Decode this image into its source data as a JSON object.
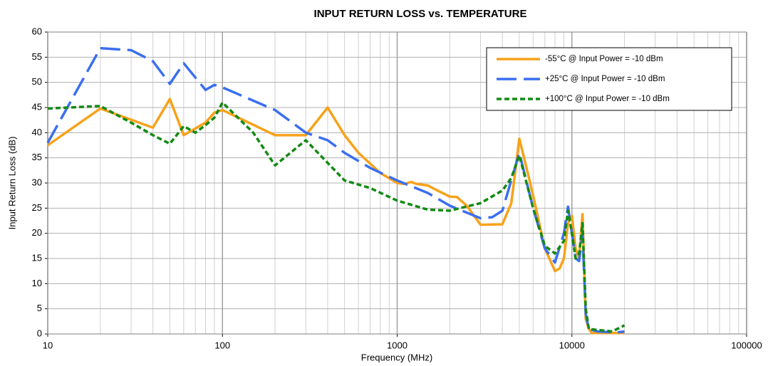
{
  "chart_data": {
    "type": "line",
    "title": "INPUT RETURN LOSS  vs. TEMPERATURE",
    "x_label": "Frequency (MHz)",
    "y_label": "Input Return Loss (dB)",
    "x_scale": "log",
    "xlim": [
      10,
      100000
    ],
    "xticks": [
      10,
      100,
      1000,
      10000,
      100000
    ],
    "ylim": [
      0,
      60
    ],
    "yticks": [
      0,
      5,
      10,
      15,
      20,
      25,
      30,
      35,
      40,
      45,
      50,
      55,
      60
    ],
    "grid": true,
    "minor_grid": true,
    "legend": "upper right",
    "series": [
      {
        "name": "-55°C @ Input Power = -10 dBm",
        "color": "#f7a21b",
        "line_style": "solid",
        "x": [
          10,
          20,
          40,
          50,
          60,
          80,
          90,
          100,
          200,
          300,
          400,
          500,
          600,
          800,
          1000,
          1100,
          1200,
          1300,
          1500,
          1700,
          2000,
          2200,
          2500,
          3000,
          4000,
          4500,
          5000,
          5500,
          6000,
          7000,
          8000,
          8500,
          9000,
          9500,
          10000,
          10500,
          11000,
          11500,
          12000,
          12500,
          13000,
          15000,
          20000
        ],
        "values": [
          37.5,
          44.8,
          41,
          46.7,
          39.5,
          42,
          44,
          44.5,
          39.5,
          39.5,
          45,
          39.5,
          36,
          32,
          30,
          29.8,
          30.2,
          29.8,
          29.5,
          28.5,
          27.3,
          27.2,
          25.5,
          21.7,
          21.8,
          26,
          38.8,
          33,
          27.5,
          17,
          12.5,
          13,
          15,
          22,
          23.5,
          17,
          15,
          23.8,
          3,
          1,
          0.2,
          0.2,
          0.2
        ]
      },
      {
        "name": "+25°C @ Input Power = -10 dBm",
        "color": "#3b6ff0",
        "line_style": "dashed",
        "x": [
          10,
          20,
          30,
          40,
          50,
          60,
          80,
          90,
          100,
          200,
          300,
          400,
          500,
          700,
          1000,
          1500,
          2000,
          3000,
          3500,
          4000,
          5000,
          6000,
          7000,
          8000,
          9000,
          9500,
          10000,
          10500,
          11000,
          11500,
          12000,
          12500,
          14000,
          18000,
          20000
        ],
        "values": [
          38,
          56.8,
          56.4,
          54.2,
          49.7,
          53.8,
          48.5,
          49.5,
          49,
          44.5,
          40,
          38.5,
          36,
          33,
          30.5,
          28,
          25.5,
          23,
          23.2,
          24.5,
          36,
          25,
          17,
          14.2,
          20,
          25.3,
          20,
          15,
          14.5,
          20,
          4,
          1,
          0.5,
          0.3,
          0.5
        ]
      },
      {
        "name": "+100°C @ Input Power = -10 dBm",
        "color": "#138a13",
        "line_style": "dotted",
        "x": [
          10,
          20,
          30,
          40,
          50,
          60,
          70,
          80,
          90,
          100,
          150,
          200,
          300,
          400,
          500,
          700,
          1000,
          1500,
          2000,
          3000,
          4000,
          4500,
          5000,
          6000,
          7000,
          8000,
          9000,
          9500,
          10000,
          10500,
          11000,
          11500,
          12000,
          12500,
          14000,
          17000,
          20000
        ],
        "values": [
          44.8,
          45.3,
          42,
          39.5,
          37.8,
          41.3,
          40,
          41.5,
          43,
          46,
          40,
          33.5,
          38.5,
          34,
          30.5,
          29,
          26.5,
          24.7,
          24.5,
          26,
          28.5,
          31,
          35.5,
          25,
          17.5,
          16,
          18.5,
          24.5,
          20,
          15,
          16,
          22,
          5,
          1,
          0.8,
          0.5,
          1.7
        ]
      }
    ]
  }
}
